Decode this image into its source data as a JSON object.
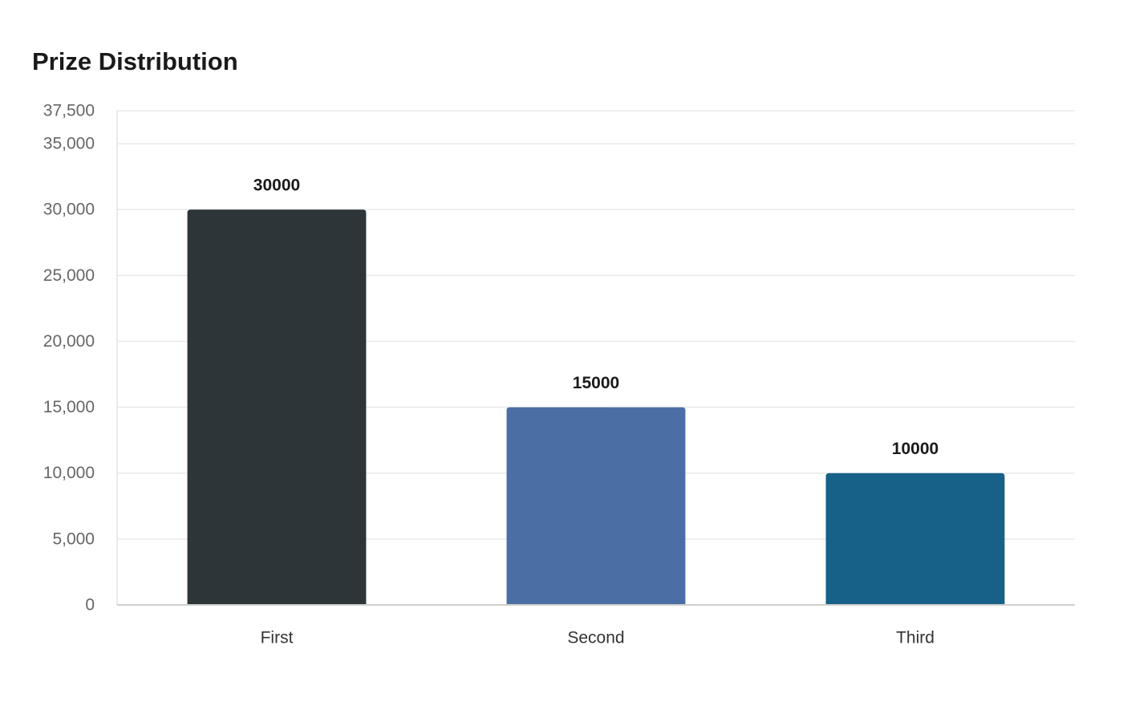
{
  "chart_data": {
    "type": "bar",
    "title": "Prize Distribution",
    "categories": [
      "First",
      "Second",
      "Third"
    ],
    "values": [
      30000,
      15000,
      10000
    ],
    "data_labels": [
      "30000",
      "15000",
      "10000"
    ],
    "colors": [
      "#2d3538",
      "#4b6fa4",
      "#176088"
    ],
    "xlabel": "",
    "ylabel": "",
    "ylim": [
      0,
      37500
    ],
    "y_ticks": [
      0,
      5000,
      10000,
      15000,
      20000,
      25000,
      30000,
      35000,
      37500
    ],
    "y_tick_labels": [
      "0",
      "5,000",
      "10,000",
      "15,000",
      "20,000",
      "25,000",
      "30,000",
      "35,000",
      "37,500"
    ],
    "grid": true,
    "legend": "none"
  }
}
